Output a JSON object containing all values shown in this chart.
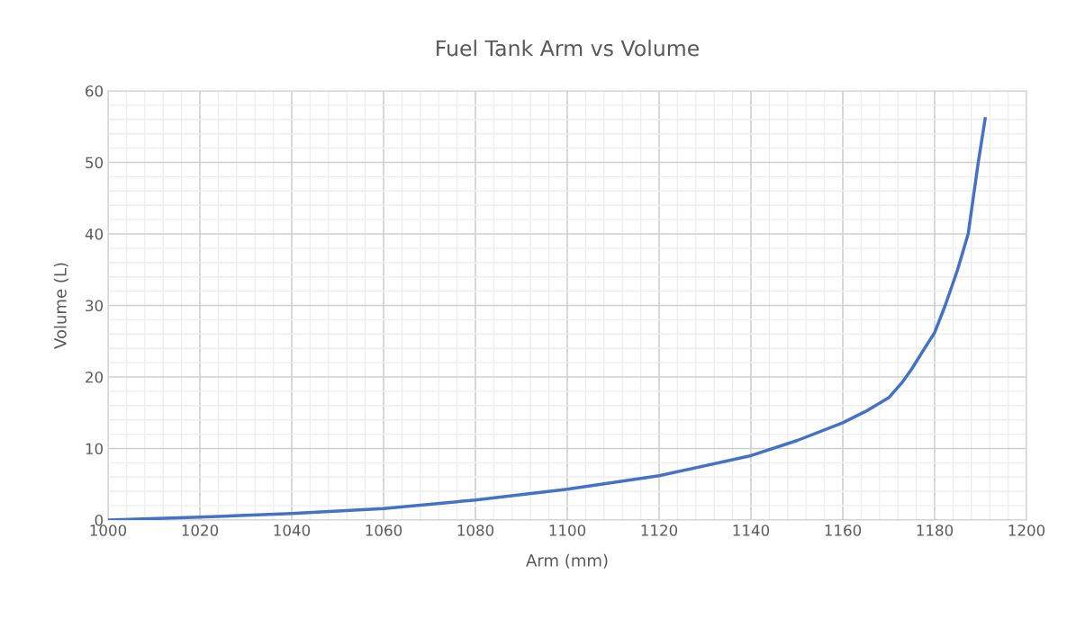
{
  "chart_data": {
    "type": "line",
    "title": "Fuel Tank Arm vs Volume",
    "xlabel": "Arm (mm)",
    "ylabel": "Volume (L)",
    "xlim": [
      1000,
      1200
    ],
    "xticks": [
      1000,
      1020,
      1040,
      1060,
      1080,
      1100,
      1120,
      1140,
      1160,
      1180,
      1200
    ],
    "ylim": [
      0,
      60
    ],
    "yticks": [
      0,
      10,
      20,
      30,
      40,
      50,
      60
    ],
    "grid": true,
    "marker": "none",
    "line_style": "solid",
    "series": [
      {
        "color": "#4472c4",
        "x": [
          1000,
          1020,
          1040,
          1060,
          1080,
          1100,
          1120,
          1140,
          1150,
          1160,
          1165,
          1170,
          1173,
          1175,
          1178,
          1180,
          1182.3,
          1185,
          1187.3,
          1189.5,
          1191
        ],
        "values": [
          0,
          0.4,
          0.9,
          1.6,
          2.8,
          4.3,
          6.2,
          9.0,
          11.1,
          13.6,
          15.2,
          17.1,
          19.3,
          21.1,
          24.2,
          26.2,
          30,
          35,
          40,
          50,
          56.1
        ]
      }
    ]
  }
}
